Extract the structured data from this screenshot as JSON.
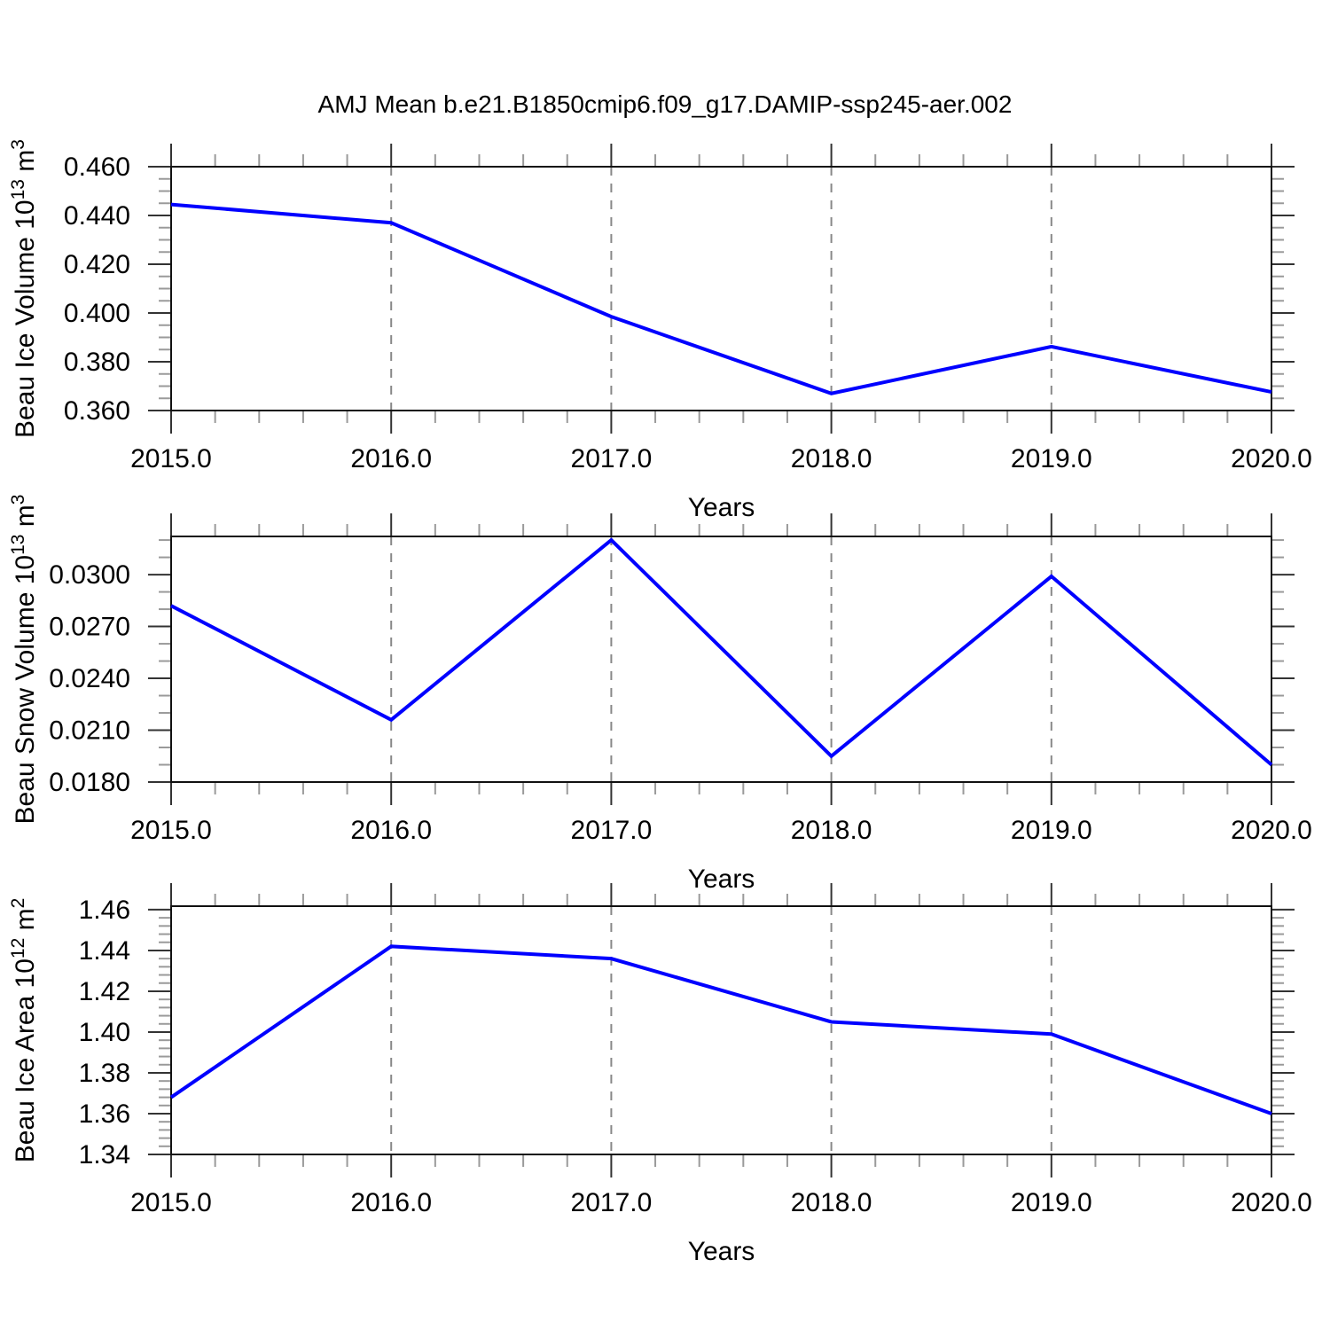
{
  "title": "AMJ Mean b.e21.B1850cmip6.f09_g17.DAMIP-ssp245-aer.002",
  "colors": {
    "line": "#0000ff",
    "grid": "#888888",
    "axis": "#111111",
    "minor_tick": "#9a9a9a",
    "major_tick": "#333333"
  },
  "chart_data": [
    {
      "type": "line",
      "name": "beau-ice-volume",
      "ylabel": "Beau Ice Volume 10^13^ m^3^",
      "xlabel": "Years",
      "x": [
        2015,
        2016,
        2017,
        2018,
        2019,
        2020
      ],
      "values": [
        0.4445,
        0.437,
        0.3985,
        0.367,
        0.3862,
        0.3676
      ],
      "xlim": [
        2015,
        2020
      ],
      "ylim": [
        0.36,
        0.46
      ],
      "x_ticks": [
        2015,
        2016,
        2017,
        2018,
        2019,
        2020
      ],
      "x_tick_labels": [
        "2015.0",
        "2016.0",
        "2017.0",
        "2018.0",
        "2019.0",
        "2020.0"
      ],
      "x_minor_step": 0.2,
      "y_ticks": [
        0.36,
        0.38,
        0.4,
        0.42,
        0.44,
        0.46
      ],
      "y_tick_labels": [
        "0.360",
        "0.380",
        "0.400",
        "0.420",
        "0.440",
        "0.460"
      ],
      "y_minor_step": 0.005,
      "grid_x": [
        2016,
        2017,
        2018,
        2019
      ],
      "grid_style": "vertical-dashed",
      "legend": "none"
    },
    {
      "type": "line",
      "name": "beau-snow-volume",
      "ylabel": "Beau Snow Volume 10^13^ m^3^",
      "xlabel": "Years",
      "x": [
        2015,
        2016,
        2017,
        2018,
        2019,
        2020
      ],
      "values": [
        0.0282,
        0.0216,
        0.032,
        0.0195,
        0.0299,
        0.019
      ],
      "xlim": [
        2015,
        2020
      ],
      "ylim": [
        0.018,
        0.03221
      ],
      "x_ticks": [
        2015,
        2016,
        2017,
        2018,
        2019,
        2020
      ],
      "x_tick_labels": [
        "2015.0",
        "2016.0",
        "2017.0",
        "2018.0",
        "2019.0",
        "2020.0"
      ],
      "x_minor_step": 0.2,
      "y_ticks": [
        0.018,
        0.021,
        0.024,
        0.027,
        0.03
      ],
      "y_tick_labels": [
        "0.0180",
        "0.0210",
        "0.0240",
        "0.0270",
        "0.0300"
      ],
      "y_minor_step": 0.001,
      "grid_x": [
        2016,
        2017,
        2018,
        2019
      ],
      "grid_style": "vertical-dashed",
      "legend": "none"
    },
    {
      "type": "line",
      "name": "beau-ice-area",
      "ylabel": "Beau Ice Area 10^12^ m^2^",
      "xlabel": "Years",
      "x": [
        2015,
        2016,
        2017,
        2018,
        2019,
        2020
      ],
      "values": [
        1.368,
        1.442,
        1.436,
        1.405,
        1.399,
        1.36
      ],
      "xlim": [
        2015,
        2020
      ],
      "ylim": [
        1.34,
        1.46171
      ],
      "x_ticks": [
        2015,
        2016,
        2017,
        2018,
        2019,
        2020
      ],
      "x_tick_labels": [
        "2015.0",
        "2016.0",
        "2017.0",
        "2018.0",
        "2019.0",
        "2020.0"
      ],
      "x_minor_step": 0.2,
      "y_ticks": [
        1.34,
        1.36,
        1.38,
        1.4,
        1.42,
        1.44,
        1.46
      ],
      "y_tick_labels": [
        "1.34",
        "1.36",
        "1.38",
        "1.40",
        "1.42",
        "1.44",
        "1.46"
      ],
      "y_minor_step": 0.004,
      "grid_x": [
        2016,
        2017,
        2018,
        2019
      ],
      "grid_style": "vertical-dashed",
      "legend": "none"
    }
  ]
}
